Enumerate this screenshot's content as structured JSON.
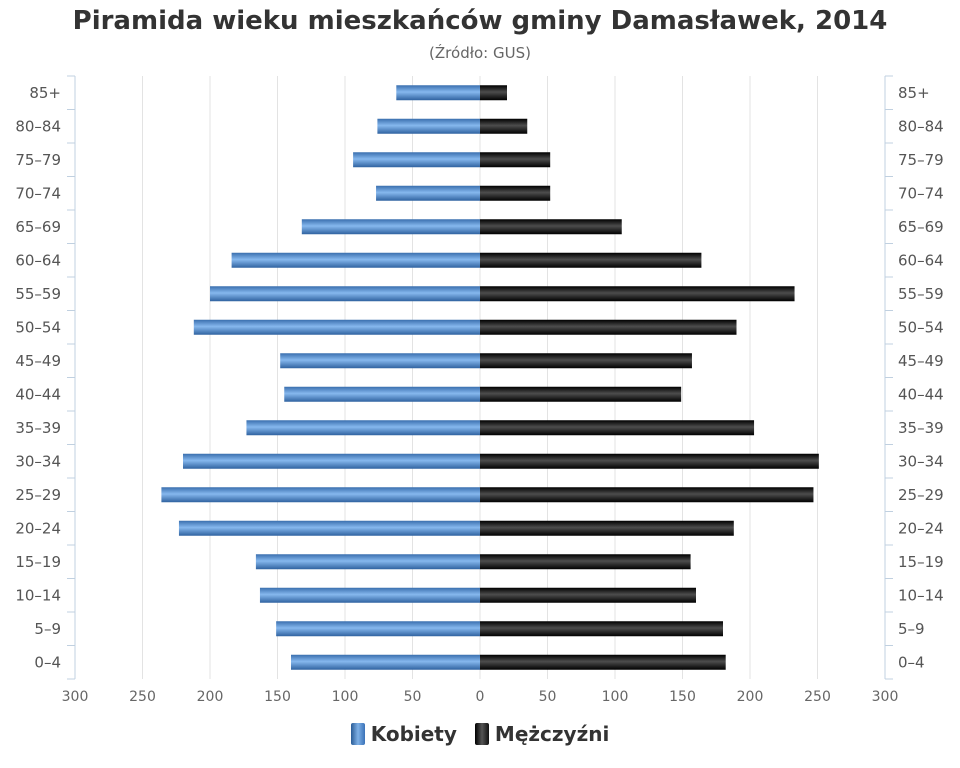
{
  "chart_data": {
    "type": "bar",
    "orientation": "horizontal",
    "title": "Piramida wieku mieszkańców gminy Damasławek, 2014",
    "subtitle": "(Źródło: GUS)",
    "categories": [
      "0–4",
      "5–9",
      "10–14",
      "15–19",
      "20–24",
      "25–29",
      "30–34",
      "35–39",
      "40–44",
      "45–49",
      "50–54",
      "55–59",
      "60–64",
      "65–69",
      "70–74",
      "75–79",
      "80–84",
      "85+"
    ],
    "series": [
      {
        "name": "Kobiety",
        "color": "#4a86c8",
        "values": [
          140,
          151,
          163,
          166,
          223,
          236,
          220,
          173,
          145,
          148,
          212,
          200,
          184,
          132,
          77,
          94,
          76,
          62
        ]
      },
      {
        "name": "Mężczyźni",
        "color": "#111111",
        "values": [
          182,
          180,
          160,
          156,
          188,
          247,
          251,
          203,
          149,
          157,
          190,
          233,
          164,
          105,
          52,
          52,
          35,
          20
        ]
      }
    ],
    "xlim": [
      -300,
      300
    ],
    "x_ticks": [
      300,
      250,
      200,
      150,
      100,
      50,
      0,
      50,
      100,
      150,
      200,
      250,
      300
    ],
    "grid": true,
    "legend_position": "bottom"
  }
}
